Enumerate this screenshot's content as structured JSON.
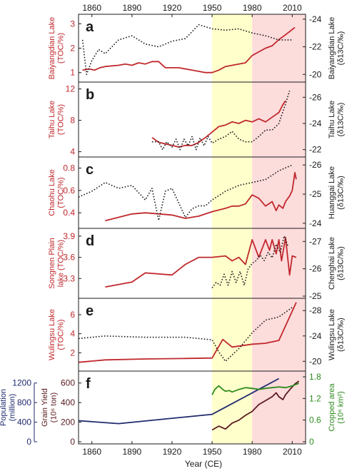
{
  "figure": {
    "x_axis": {
      "label": "Year (CE)",
      "range": [
        1850,
        2020
      ],
      "ticks": [
        1860,
        1890,
        1920,
        1950,
        1980,
        2010
      ]
    },
    "shading": [
      {
        "from": 1950,
        "to": 1980,
        "color": "#ffffcc"
      },
      {
        "from": 1980,
        "to": 2020,
        "color": "#fddcdc"
      }
    ],
    "colors": {
      "toc": "#c0282d",
      "d13c": "#1a1a1a",
      "population": "#1f2a6e",
      "grain": "#5a1a1f",
      "cropped": "#2e8b1e",
      "axis_left": "#c0282d",
      "axis_right": "#1a1a1a"
    }
  },
  "chart_data": [
    {
      "type": "line",
      "panel": "a",
      "left_label": [
        "Baiyangdian Lake",
        "(TOC/%)"
      ],
      "left_ylim": [
        0.7,
        3.3
      ],
      "left_ticks": [
        1,
        2,
        3
      ],
      "right_label": [
        "Baiyangdian Lake",
        "(δ13C/‰)"
      ],
      "right_ylim": [
        -19.6,
        -24.2
      ],
      "right_ticks": [
        -20,
        -22,
        -24
      ],
      "series": [
        {
          "axis": "left",
          "style": "solid",
          "x": [
            1853,
            1858,
            1862,
            1866,
            1870,
            1880,
            1885,
            1890,
            1895,
            1900,
            1905,
            1910,
            1915,
            1925,
            1935,
            1940,
            1945,
            1950,
            1955,
            1960,
            1965,
            1970,
            1975,
            1980,
            1985,
            1990,
            1995,
            2000,
            2005,
            2012
          ],
          "y": [
            1.1,
            1.15,
            1.1,
            1.2,
            1.25,
            1.3,
            1.35,
            1.3,
            1.4,
            1.35,
            1.45,
            1.45,
            1.2,
            1.2,
            1.1,
            1.05,
            1.0,
            1.0,
            1.1,
            1.25,
            1.3,
            1.35,
            1.4,
            1.7,
            1.85,
            2.0,
            2.1,
            2.35,
            2.55,
            2.85
          ]
        },
        {
          "axis": "right",
          "style": "dotted",
          "x": [
            1853,
            1856,
            1860,
            1865,
            1870,
            1880,
            1890,
            1900,
            1910,
            1920,
            1930,
            1935,
            1940,
            1950,
            1960,
            1970,
            1980,
            1990,
            2000,
            2010
          ],
          "y": [
            -22.5,
            -20.0,
            -21.0,
            -21.8,
            -21.5,
            -22.5,
            -22.8,
            -22.2,
            -22.0,
            -22.4,
            -22.6,
            -23.1,
            -23.6,
            -23.3,
            -23.2,
            -23.3,
            -23.0,
            -22.8,
            -22.5,
            -22.5
          ]
        }
      ]
    },
    {
      "type": "line",
      "panel": "b",
      "left_label": [
        "Taihu Lake",
        "(TOC/%)"
      ],
      "left_ylim": [
        3.6,
        12.6
      ],
      "left_ticks": [
        4,
        8,
        12
      ],
      "right_label": [
        "Taihu Lake",
        "(δ13C/‰)"
      ],
      "right_ylim": [
        -21.6,
        -27.0
      ],
      "right_ticks": [
        -22,
        -24,
        -26
      ],
      "series": [
        {
          "axis": "left",
          "style": "solid",
          "x": [
            1905,
            1910,
            1920,
            1925,
            1930,
            1935,
            1940,
            1945,
            1950,
            1955,
            1960,
            1965,
            1970,
            1975,
            1980,
            1985,
            1990,
            1995,
            2000,
            2003,
            2005
          ],
          "y": [
            5.8,
            5.2,
            4.8,
            4.6,
            4.8,
            4.8,
            5.2,
            5.8,
            6.5,
            7.2,
            7.4,
            7.8,
            7.6,
            8.0,
            7.8,
            8.2,
            7.8,
            8.4,
            9.0,
            10.0,
            10.5
          ]
        },
        {
          "axis": "right",
          "style": "dotted",
          "x": [
            1905,
            1910,
            1913,
            1916,
            1920,
            1923,
            1926,
            1929,
            1932,
            1935,
            1938,
            1941,
            1944,
            1947,
            1950,
            1955,
            1960,
            1965,
            1970,
            1975,
            1980,
            1985,
            1990,
            1995,
            2000,
            2005,
            2008
          ],
          "y": [
            -22.6,
            -22.6,
            -22.0,
            -22.6,
            -22.2,
            -22.8,
            -22.0,
            -22.8,
            -22.3,
            -23.0,
            -22.0,
            -22.9,
            -22.3,
            -23.0,
            -22.5,
            -22.8,
            -23.0,
            -23.4,
            -22.8,
            -22.6,
            -22.6,
            -23.0,
            -23.5,
            -23.5,
            -24.0,
            -25.5,
            -26.5
          ]
        }
      ]
    },
    {
      "type": "line",
      "panel": "c",
      "left_label": [
        "Chaohu Lake",
        "(TOC/%)"
      ],
      "left_ylim": [
        0.28,
        0.88
      ],
      "left_ticks": [
        0.4,
        0.6,
        0.8
      ],
      "right_label": [
        "Huanggai Lake",
        "(δ13C/‰)"
      ],
      "right_ylim": [
        -23.9,
        -26.2
      ],
      "right_ticks": [
        -24,
        -25,
        -26
      ],
      "series": [
        {
          "axis": "left",
          "style": "solid",
          "x": [
            1870,
            1890,
            1900,
            1920,
            1930,
            1940,
            1950,
            1960,
            1965,
            1970,
            1975,
            1980,
            1985,
            1990,
            1995,
            1998,
            2000,
            2003,
            2005,
            2008,
            2010,
            2012,
            2013
          ],
          "y": [
            0.33,
            0.39,
            0.4,
            0.38,
            0.35,
            0.37,
            0.41,
            0.44,
            0.46,
            0.46,
            0.48,
            0.56,
            0.53,
            0.46,
            0.5,
            0.42,
            0.47,
            0.44,
            0.5,
            0.55,
            0.6,
            0.76,
            0.7
          ]
        },
        {
          "axis": "right",
          "style": "dotted",
          "x": [
            1850,
            1860,
            1870,
            1880,
            1890,
            1900,
            1905,
            1910,
            1915,
            1920,
            1925,
            1930,
            1935,
            1940,
            1945,
            1950,
            1960,
            1970,
            1980,
            1990,
            2000,
            2010
          ],
          "y": [
            -24.9,
            -25.1,
            -25.4,
            -25.2,
            -25.3,
            -24.8,
            -25.2,
            -24.1,
            -25.1,
            -25.2,
            -24.7,
            -24.2,
            -24.5,
            -24.6,
            -24.6,
            -24.8,
            -25.1,
            -25.3,
            -25.4,
            -25.5,
            -25.8,
            -26.0
          ]
        }
      ]
    },
    {
      "type": "line",
      "panel": "d",
      "left_label": [
        "Songnen Plain",
        "lake (TOC/%)"
      ],
      "left_ylim": [
        3.05,
        3.98
      ],
      "left_ticks": [
        3.3,
        3.6,
        3.9
      ],
      "right_label": [
        "Chenghai Lake",
        "(δ13C/‰)"
      ],
      "right_ylim": [
        -25.0,
        -27.4
      ],
      "right_ticks": [
        -25,
        -26,
        -27
      ],
      "series": [
        {
          "axis": "left",
          "style": "solid",
          "x": [
            1870,
            1890,
            1900,
            1920,
            1930,
            1940,
            1950,
            1960,
            1965,
            1970,
            1975,
            1980,
            1985,
            1990,
            1993,
            1995,
            1998,
            2000,
            2002,
            2005,
            2008,
            2010,
            2013
          ],
          "y": [
            3.18,
            3.25,
            3.38,
            3.35,
            3.5,
            3.6,
            3.6,
            3.62,
            3.55,
            3.6,
            3.5,
            3.85,
            3.6,
            3.85,
            3.7,
            3.85,
            3.65,
            3.85,
            3.55,
            3.88,
            3.35,
            3.62,
            3.6
          ]
        },
        {
          "axis": "right",
          "style": "dotted",
          "x": [
            1950,
            1953,
            1956,
            1959,
            1962,
            1965,
            1968,
            1971,
            1974,
            1977,
            1980,
            1983,
            1986,
            1989,
            1992,
            1995,
            1998,
            2001,
            2004,
            2007
          ],
          "y": [
            -25.3,
            -25.5,
            -25.4,
            -25.8,
            -25.4,
            -25.9,
            -25.5,
            -25.9,
            -25.4,
            -26.0,
            -26.2,
            -26.3,
            -26.5,
            -26.3,
            -26.6,
            -26.4,
            -26.9,
            -26.6,
            -27.2,
            -26.8
          ]
        }
      ]
    },
    {
      "type": "line",
      "panel": "e",
      "left_label": [
        "Wulingsu Lake",
        "(TOC/%)"
      ],
      "left_ylim": [
        0.3,
        7.5
      ],
      "left_ticks": [
        2,
        4,
        6
      ],
      "right_label": [
        "Wulingsu Lake",
        "(δ13C/‰)"
      ],
      "right_ylim": [
        -18.8,
        -29.6
      ],
      "right_ticks": [
        -20,
        -24,
        -28
      ],
      "series": [
        {
          "axis": "left",
          "style": "solid",
          "x": [
            1850,
            1870,
            1900,
            1930,
            1950,
            1958,
            1965,
            1975,
            1980,
            1990,
            2000,
            2013
          ],
          "y": [
            1.0,
            1.25,
            1.35,
            1.4,
            1.45,
            3.4,
            2.6,
            2.8,
            2.9,
            3.0,
            3.3,
            7.3
          ]
        },
        {
          "axis": "right",
          "style": "dotted",
          "x": [
            1850,
            1870,
            1900,
            1930,
            1950,
            1955,
            1960,
            1965,
            1970,
            1980,
            1990,
            2000,
            2010
          ],
          "y": [
            -23.6,
            -24.0,
            -23.8,
            -23.8,
            -23.4,
            -21.5,
            -20.0,
            -21.0,
            -22.0,
            -24.5,
            -26.5,
            -27.0,
            -28.5
          ]
        }
      ]
    },
    {
      "type": "line",
      "panel": "f",
      "left_label": [
        "Grain Yield",
        "(10⁶ ton)"
      ],
      "left_ylim": [
        0,
        700
      ],
      "left_ticks": [
        0,
        200,
        400,
        600
      ],
      "outer_label": [
        "Population",
        "(million)"
      ],
      "outer_ylim": [
        0,
        1400
      ],
      "outer_ticks": [
        0,
        400,
        800,
        1200
      ],
      "right_label": [
        "Cropped area",
        "(10⁶ km²)"
      ],
      "right_ylim": [
        0,
        1.9
      ],
      "right_ticks": [
        0,
        0.6,
        1.2,
        1.8
      ],
      "series": [
        {
          "name": "Population",
          "axis": "outer",
          "style": "solid",
          "x": [
            1850,
            1880,
            1950,
            2000
          ],
          "y": [
            430,
            370,
            560,
            1290
          ]
        },
        {
          "name": "Grain yield",
          "axis": "left",
          "style": "solid",
          "x": [
            1950,
            1955,
            1960,
            1965,
            1970,
            1975,
            1980,
            1985,
            1990,
            1995,
            1998,
            2000,
            2003,
            2005,
            2008,
            2010,
            2012,
            2015
          ],
          "y": [
            120,
            160,
            130,
            190,
            220,
            270,
            310,
            380,
            420,
            460,
            500,
            460,
            430,
            480,
            530,
            560,
            590,
            620
          ]
        },
        {
          "name": "Cropped area",
          "axis": "right",
          "style": "solid",
          "x": [
            1950,
            1952,
            1955,
            1958,
            1960,
            1963,
            1965,
            1970,
            1975,
            1980,
            1985,
            1990,
            1995,
            2000,
            2005,
            2010,
            2015
          ],
          "y": [
            1.3,
            1.45,
            1.55,
            1.45,
            1.4,
            1.42,
            1.38,
            1.45,
            1.5,
            1.48,
            1.45,
            1.48,
            1.5,
            1.52,
            1.5,
            1.55,
            1.62
          ]
        }
      ]
    }
  ]
}
